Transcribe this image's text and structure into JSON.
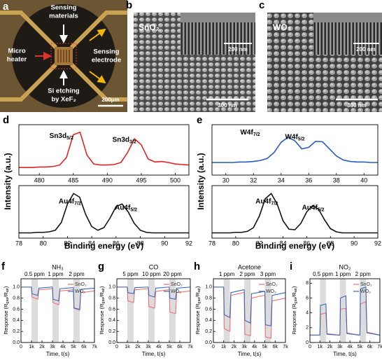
{
  "images": {
    "a": {
      "label": "a",
      "sensing_materials": [
        "Sensing",
        "materials"
      ],
      "micro_heater": [
        "Micro",
        "heater"
      ],
      "sensing_electrode": [
        "Sensing",
        "electrode"
      ],
      "si_etching": [
        "Si etching",
        "by XeF₂"
      ],
      "scale_bar": "200μm"
    },
    "b": {
      "label": "b",
      "material": "SnO₂",
      "inset_scale": "200 nm",
      "scale_bar": "300 nm"
    },
    "c": {
      "label": "c",
      "material": "WO₃",
      "inset_scale": "200 nm",
      "scale_bar": "300 nm"
    }
  },
  "chart_data": [
    {
      "type": "line",
      "panel_label": "d",
      "x": [
        477,
        478,
        479,
        480,
        481,
        482,
        483,
        484,
        485,
        486,
        487,
        488,
        489,
        490,
        491,
        492,
        493,
        494,
        495,
        496,
        497,
        498,
        499,
        500,
        501,
        502
      ],
      "series": [
        {
          "color": "#e02424",
          "values": [
            0.15,
            0.15,
            0.15,
            0.16,
            0.16,
            0.17,
            0.2,
            0.35,
            0.8,
            0.85,
            0.4,
            0.22,
            0.2,
            0.2,
            0.21,
            0.25,
            0.45,
            0.72,
            0.6,
            0.32,
            0.26,
            0.27,
            0.25,
            0.22,
            0.21,
            0.2
          ]
        }
      ],
      "xlim": [
        477,
        502
      ],
      "xticks": [
        480,
        485,
        490,
        495,
        500
      ],
      "ylim": [
        0,
        1
      ],
      "peaks": [
        {
          "text": "Sn3d",
          "sub": "5/2"
        },
        {
          "text": "Sn3d",
          "sub": "3/2"
        }
      ]
    },
    {
      "type": "line",
      "x": [
        78,
        78.5,
        79,
        79.5,
        80,
        80.5,
        81,
        81.5,
        82,
        82.5,
        83,
        83.5,
        84,
        84.5,
        85,
        85.5,
        86,
        86.5,
        87,
        87.5,
        88,
        88.5,
        89,
        89.5,
        90,
        90.5,
        91,
        91.5,
        92
      ],
      "series": [
        {
          "color": "#111111",
          "values": [
            0.1,
            0.1,
            0.1,
            0.11,
            0.11,
            0.12,
            0.15,
            0.3,
            0.65,
            0.85,
            0.78,
            0.45,
            0.22,
            0.15,
            0.2,
            0.38,
            0.6,
            0.65,
            0.5,
            0.28,
            0.15,
            0.11,
            0.1,
            0.1,
            0.1,
            0.1,
            0.1,
            0.1,
            0.1
          ]
        }
      ],
      "xlim": [
        78,
        92
      ],
      "xticks": [
        78,
        80,
        82,
        84,
        86,
        88,
        90,
        92
      ],
      "ylim": [
        0,
        1
      ],
      "peaks": [
        {
          "text": "Au4f",
          "sub": "7/2"
        },
        {
          "text": "Au4f",
          "sub": "5/2"
        }
      ],
      "xlabel": "Binding energy (eV)",
      "ylabel": "Intensity (a.u.)"
    },
    {
      "type": "line",
      "panel_label": "e",
      "x": [
        29,
        29.5,
        30,
        30.5,
        31,
        31.5,
        32,
        32.5,
        33,
        33.5,
        34,
        34.5,
        35,
        35.5,
        36,
        36.5,
        37,
        37.5,
        38,
        38.5,
        39,
        39.5,
        40,
        40.5,
        41
      ],
      "series": [
        {
          "color": "#2a5bbf",
          "values": [
            0.25,
            0.25,
            0.25,
            0.25,
            0.26,
            0.26,
            0.27,
            0.29,
            0.33,
            0.45,
            0.65,
            0.75,
            0.68,
            0.52,
            0.55,
            0.67,
            0.66,
            0.52,
            0.38,
            0.3,
            0.27,
            0.26,
            0.26,
            0.25,
            0.25
          ]
        }
      ],
      "xlim": [
        29,
        41
      ],
      "xticks": [
        30,
        32,
        34,
        36,
        38,
        40
      ],
      "ylim": [
        0,
        1
      ],
      "peaks": [
        {
          "text": "W4f",
          "sub": "7/2"
        },
        {
          "text": "W4f",
          "sub": "5/2"
        }
      ]
    },
    {
      "type": "line",
      "x": [
        78,
        78.5,
        79,
        79.5,
        80,
        80.5,
        81,
        81.5,
        82,
        82.5,
        83,
        83.5,
        84,
        84.5,
        85,
        85.5,
        86,
        86.5,
        87,
        87.5,
        88,
        88.5,
        89,
        89.5,
        90,
        90.5,
        91,
        91.5,
        92
      ],
      "series": [
        {
          "color": "#111111",
          "values": [
            0.1,
            0.1,
            0.1,
            0.1,
            0.11,
            0.11,
            0.13,
            0.2,
            0.42,
            0.75,
            0.85,
            0.65,
            0.33,
            0.17,
            0.16,
            0.28,
            0.5,
            0.62,
            0.55,
            0.35,
            0.18,
            0.12,
            0.1,
            0.1,
            0.1,
            0.1,
            0.1,
            0.1,
            0.1
          ]
        }
      ],
      "xlim": [
        78,
        92
      ],
      "xticks": [
        78,
        80,
        82,
        84,
        86,
        88,
        90,
        92
      ],
      "ylim": [
        0,
        1
      ],
      "peaks": [
        {
          "text": "Au4f",
          "sub": "7/2"
        },
        {
          "text": "Au4f",
          "sub": "5/2"
        }
      ],
      "xlabel": "Binding energy (eV)",
      "ylabel": "Intensity (a.u.)"
    },
    {
      "type": "line",
      "panel_label": "f",
      "title": "NH₃",
      "concentrations": [
        "0.5 ppm",
        "1 ppm",
        "2 ppm"
      ],
      "exposures": [
        [
          1000,
          1600
        ],
        [
          3000,
          3600
        ],
        [
          5000,
          5600
        ]
      ],
      "x": [
        0,
        1000,
        1050,
        1600,
        1700,
        2900,
        3000,
        3050,
        3600,
        3700,
        4900,
        5000,
        5050,
        5600,
        5700,
        7000
      ],
      "series": [
        {
          "name": "SnO₂",
          "color": "#f07070",
          "values": [
            1.0,
            1.0,
            0.82,
            0.78,
            0.95,
            0.97,
            0.97,
            0.72,
            0.68,
            0.93,
            0.95,
            0.95,
            0.62,
            0.58,
            0.9,
            0.93
          ]
        },
        {
          "name": "WO₃",
          "color": "#3a66c0",
          "values": [
            1.0,
            1.0,
            0.88,
            0.85,
            0.98,
            1.0,
            1.0,
            0.78,
            0.75,
            0.97,
            0.99,
            0.99,
            0.62,
            0.6,
            0.96,
            0.98
          ]
        }
      ],
      "xlim": [
        0,
        7000
      ],
      "xticks": [
        0,
        {
          "value": 1000,
          "label": "1k"
        },
        {
          "value": 2000,
          "label": "2k"
        },
        {
          "value": 3000,
          "label": "3k"
        },
        {
          "value": 4000,
          "label": "4k"
        },
        {
          "value": 5000,
          "label": "5k"
        },
        {
          "value": 6000,
          "label": "6k"
        },
        {
          "value": 7000,
          "label": "7k"
        }
      ],
      "ylim": [
        0,
        1.15
      ],
      "yticks": [
        {
          "value": 0,
          "label": "0.0"
        },
        0.2,
        0.4,
        0.6,
        0.8,
        {
          "value": 1,
          "label": "1.0"
        }
      ],
      "xlabel": "Time, t(s)",
      "ylabel": [
        "Response (R",
        "gas",
        "/R",
        "air",
        ")"
      ]
    },
    {
      "type": "line",
      "panel_label": "g",
      "title": "CO",
      "concentrations": [
        "5 ppm",
        "10 ppm",
        "20 ppm"
      ],
      "exposures": [
        [
          1000,
          1600
        ],
        [
          3000,
          3600
        ],
        [
          5000,
          5600
        ]
      ],
      "x": [
        0,
        1000,
        1050,
        1600,
        1700,
        2900,
        3000,
        3050,
        3600,
        3700,
        4900,
        5000,
        5050,
        5600,
        5700,
        7000
      ],
      "series": [
        {
          "name": "SnO₂",
          "color": "#f07070",
          "values": [
            1.0,
            1.0,
            0.75,
            0.72,
            0.95,
            0.97,
            0.97,
            0.65,
            0.62,
            0.92,
            0.95,
            0.95,
            0.55,
            0.52,
            0.9,
            0.93
          ]
        },
        {
          "name": "WO₃",
          "color": "#3a66c0",
          "values": [
            1.0,
            1.0,
            0.9,
            0.88,
            0.99,
            1.0,
            1.0,
            0.85,
            0.82,
            0.98,
            1.0,
            1.0,
            0.8,
            0.78,
            0.98,
            1.0
          ]
        }
      ],
      "xlim": [
        0,
        7000
      ],
      "xticks": [
        0,
        {
          "value": 1000,
          "label": "1k"
        },
        {
          "value": 2000,
          "label": "2k"
        },
        {
          "value": 3000,
          "label": "3k"
        },
        {
          "value": 4000,
          "label": "4k"
        },
        {
          "value": 5000,
          "label": "5k"
        },
        {
          "value": 6000,
          "label": "6k"
        },
        {
          "value": 7000,
          "label": "7k"
        }
      ],
      "ylim": [
        0,
        1.15
      ],
      "yticks": [
        {
          "value": 0,
          "label": "0.0"
        },
        0.2,
        0.4,
        0.6,
        0.8,
        {
          "value": 1,
          "label": "1.0"
        }
      ],
      "xlabel": "Time, t(s)",
      "ylabel": [
        "Response (R",
        "gas",
        "/R",
        "air",
        ")"
      ]
    },
    {
      "type": "line",
      "panel_label": "h",
      "title": "Acetone",
      "concentrations": [
        "1 ppm",
        "2 ppm",
        "3 ppm"
      ],
      "exposures": [
        [
          1000,
          1600
        ],
        [
          3000,
          3600
        ],
        [
          5000,
          5600
        ]
      ],
      "x": [
        0,
        1000,
        1050,
        1600,
        1700,
        2900,
        3000,
        3050,
        3600,
        3700,
        4900,
        5000,
        5050,
        5600,
        5700,
        7000
      ],
      "series": [
        {
          "name": "SnO₂",
          "color": "#f07070",
          "values": [
            1.0,
            1.0,
            0.25,
            0.2,
            0.85,
            0.9,
            0.9,
            0.15,
            0.12,
            0.8,
            0.85,
            0.85,
            0.1,
            0.08,
            0.75,
            0.8
          ]
        },
        {
          "name": "WO₃",
          "color": "#3a66c0",
          "values": [
            1.0,
            1.0,
            0.5,
            0.45,
            0.9,
            0.95,
            0.95,
            0.4,
            0.35,
            0.88,
            0.92,
            0.92,
            0.32,
            0.3,
            0.85,
            0.9
          ]
        }
      ],
      "xlim": [
        0,
        7000
      ],
      "xticks": [
        0,
        {
          "value": 1000,
          "label": "1k"
        },
        {
          "value": 2000,
          "label": "2k"
        },
        {
          "value": 3000,
          "label": "3k"
        },
        {
          "value": 4000,
          "label": "4k"
        },
        {
          "value": 5000,
          "label": "5k"
        },
        {
          "value": 6000,
          "label": "6k"
        },
        {
          "value": 7000,
          "label": "7k"
        }
      ],
      "ylim": [
        0,
        1.15
      ],
      "yticks": [
        {
          "value": 0,
          "label": "0.0"
        },
        0.2,
        0.4,
        0.6,
        0.8,
        {
          "value": 1,
          "label": "1.0"
        }
      ],
      "xlabel": "Time, t(s)",
      "ylabel": [
        "Response (R",
        "gas",
        "/R",
        "air",
        ")"
      ]
    },
    {
      "type": "line",
      "panel_label": "i",
      "title": "NO₂",
      "concentrations": [
        "0.5 ppm",
        "1 ppm",
        "2 ppm"
      ],
      "exposures": [
        [
          1000,
          1600
        ],
        [
          3000,
          3600
        ],
        [
          5000,
          5600
        ]
      ],
      "x": [
        0,
        1000,
        1050,
        1600,
        1700,
        2900,
        3000,
        3050,
        3600,
        3700,
        4900,
        5000,
        5050,
        5600,
        5700,
        7000
      ],
      "series": [
        {
          "name": "SnO₂",
          "color": "#f07070",
          "values": [
            1.0,
            1.0,
            3.8,
            4.0,
            1.2,
            1.0,
            1.0,
            4.5,
            4.6,
            1.3,
            1.0,
            1.0,
            5.2,
            5.5,
            1.4,
            1.0
          ]
        },
        {
          "name": "WO₃",
          "color": "#3a66c0",
          "values": [
            1.0,
            1.0,
            5.0,
            5.2,
            1.1,
            1.0,
            1.0,
            6.0,
            6.3,
            1.2,
            1.0,
            1.0,
            7.2,
            7.5,
            1.3,
            1.0
          ]
        }
      ],
      "xlim": [
        0,
        7000
      ],
      "xticks": [
        0,
        {
          "value": 1000,
          "label": "1k"
        },
        {
          "value": 2000,
          "label": "2k"
        },
        {
          "value": 3000,
          "label": "3k"
        },
        {
          "value": 4000,
          "label": "4k"
        },
        {
          "value": 5000,
          "label": "5k"
        },
        {
          "value": 6000,
          "label": "6k"
        },
        {
          "value": 7000,
          "label": "7k"
        }
      ],
      "ylim": [
        0,
        8.6
      ],
      "yticks": [
        0,
        2,
        4,
        6,
        8
      ],
      "xlabel": "Time, t(s)",
      "ylabel": [
        "Response (R",
        "gas",
        "/R",
        "air",
        ")"
      ]
    }
  ]
}
